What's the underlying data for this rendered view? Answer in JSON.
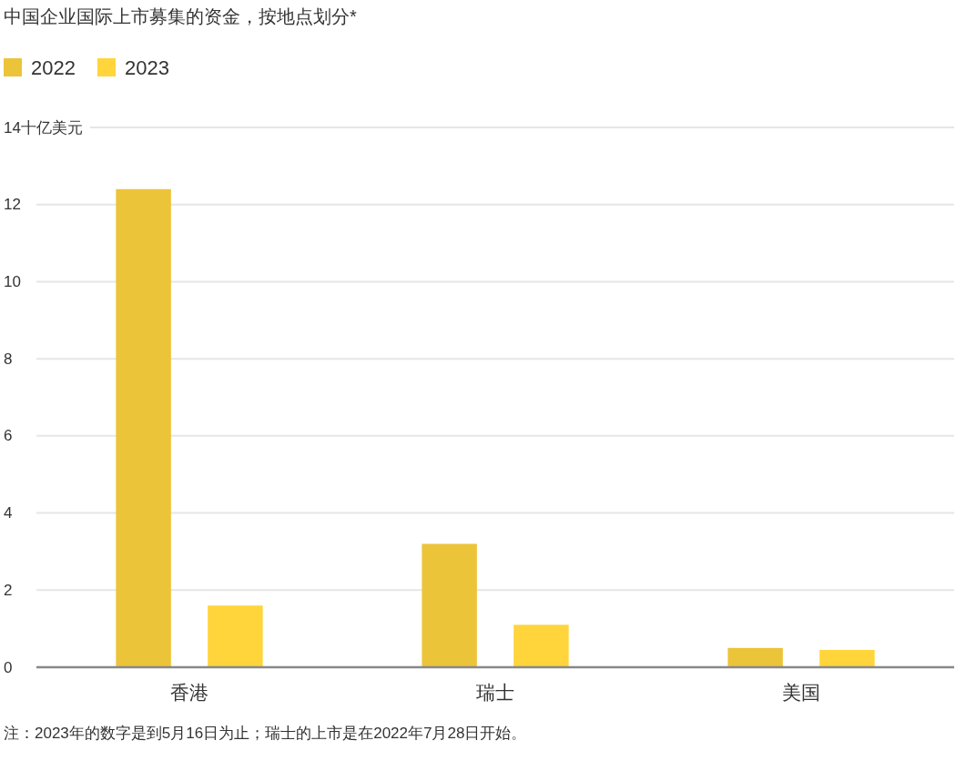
{
  "chart_data": {
    "type": "bar",
    "title": "中国企业国际上市募集的资金，按地点划分*",
    "categories": [
      "香港",
      "瑞士",
      "美国"
    ],
    "series": [
      {
        "name": "2022",
        "color": "#ecc43a",
        "values": [
          12.4,
          3.2,
          0.5
        ]
      },
      {
        "name": "2023",
        "color": "#ffd53b",
        "values": [
          1.6,
          1.1,
          0.45
        ]
      }
    ],
    "ylim": [
      0,
      14
    ],
    "yticks": [
      0,
      2,
      4,
      6,
      8,
      10,
      12,
      {
        "value": 14,
        "label": "14十亿美元"
      }
    ],
    "grid": "y",
    "legend": "top left",
    "annotations": [
      "注：2023年的数字是到5月16日为止；瑞士的上市是在2022年7月28日开始。"
    ]
  }
}
